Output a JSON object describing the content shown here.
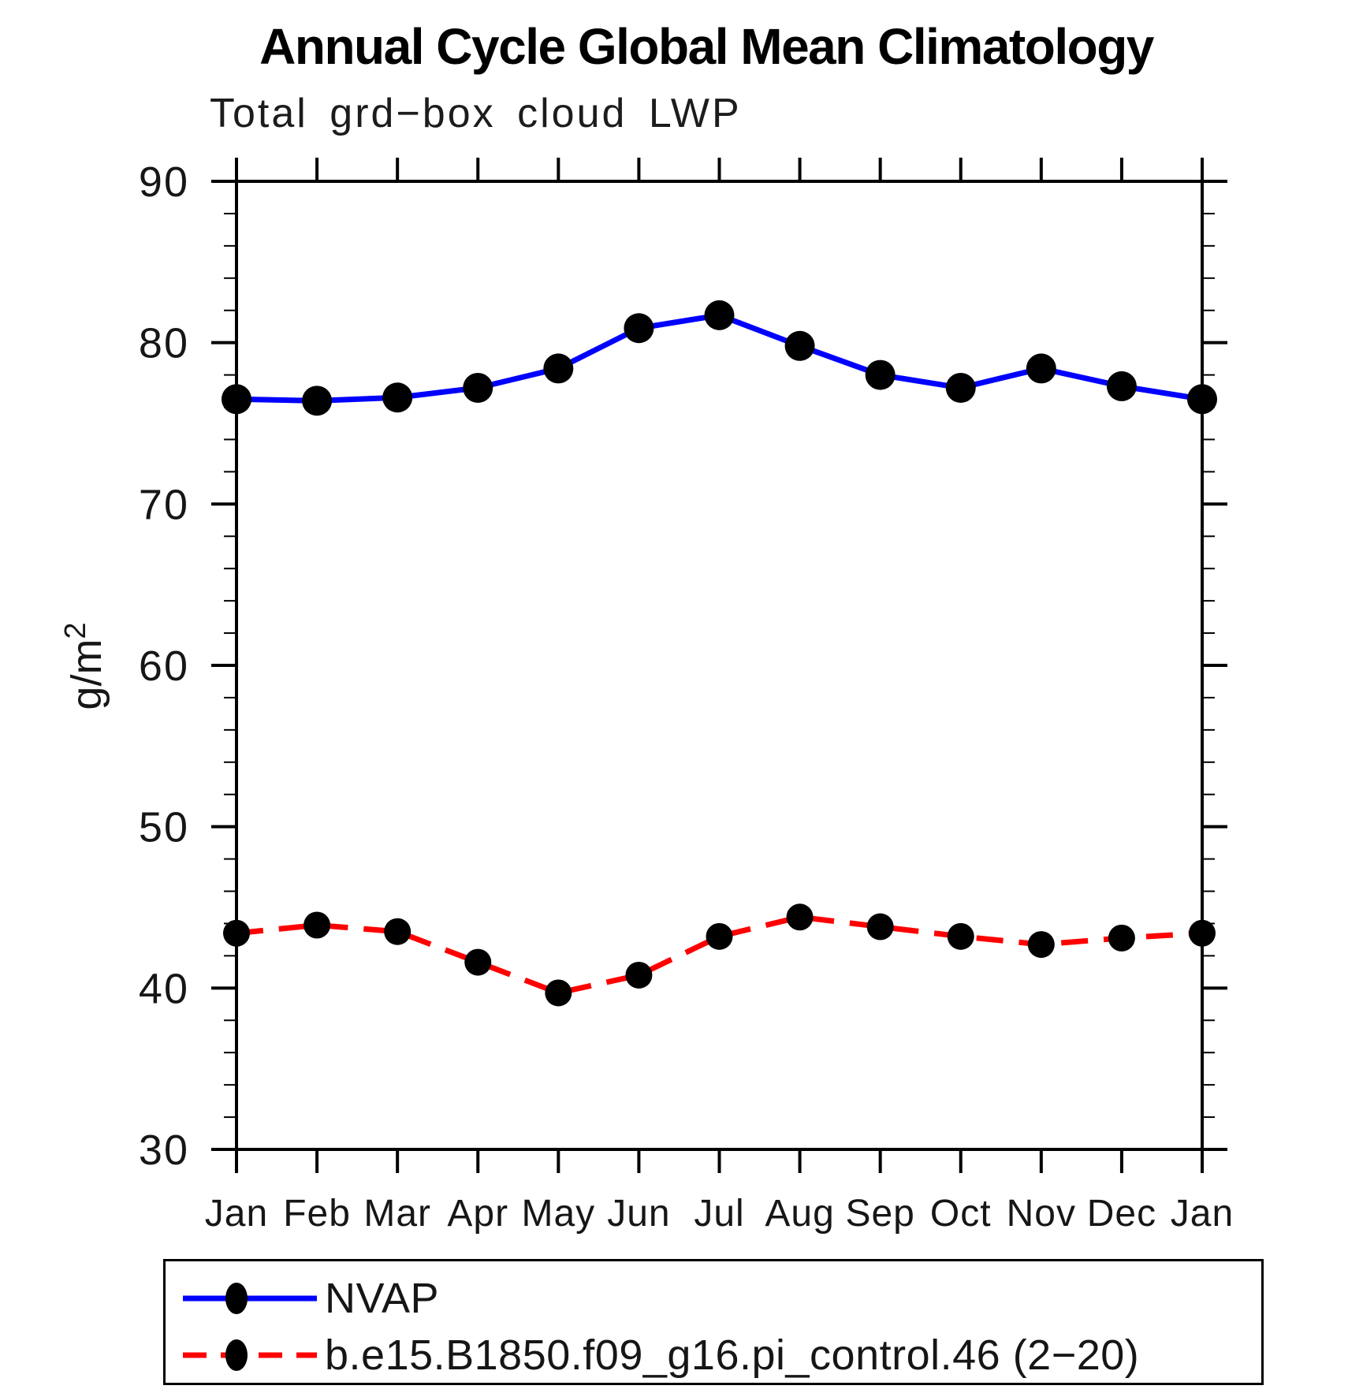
{
  "page": {
    "background_color": "#ffffff",
    "text_color": "#000000"
  },
  "chart_data": {
    "type": "line",
    "title": "Annual Cycle Global Mean Climatology",
    "subtitle": "Total grd−box cloud LWP",
    "ylabel_base": "g/m",
    "ylabel_exp": "2",
    "categories": [
      "Jan",
      "Feb",
      "Mar",
      "Apr",
      "May",
      "Jun",
      "Jul",
      "Aug",
      "Sep",
      "Oct",
      "Nov",
      "Dec",
      "Jan"
    ],
    "ylim": [
      30,
      90
    ],
    "yticks": [
      30,
      40,
      50,
      60,
      70,
      80,
      90
    ],
    "ytick_minor_step": 2,
    "grid": false,
    "axis_color": "#000000",
    "legend_position": "bottom",
    "series": [
      {
        "name": "NVAP",
        "color": "#0000ff",
        "line_style": "solid",
        "marker": "filled-circle",
        "marker_color": "#000000",
        "values": [
          76.5,
          76.4,
          76.6,
          77.2,
          78.4,
          80.9,
          81.7,
          79.8,
          78.0,
          77.2,
          78.4,
          77.3,
          76.5
        ]
      },
      {
        "name": "b.e15.B1850.f09_g16.pi_control.46 (2−20)",
        "color": "#ff0000",
        "line_style": "dashed",
        "marker": "filled-circle",
        "marker_color": "#000000",
        "values": [
          43.4,
          43.9,
          43.5,
          41.6,
          39.7,
          40.8,
          43.2,
          44.4,
          43.8,
          43.2,
          42.7,
          43.1,
          43.4
        ]
      }
    ]
  }
}
